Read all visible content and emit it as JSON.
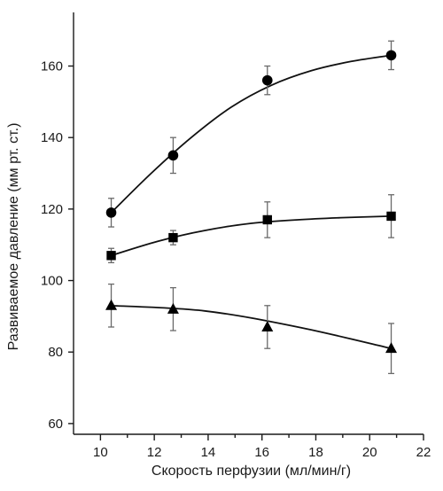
{
  "chart_data": {
    "type": "line",
    "xlabel": "Скорость перфузии (мл/мин/г)",
    "ylabel": "Развиваемое давление (мм рт. ст.)",
    "xlim": [
      9,
      22
    ],
    "ylim": [
      57,
      175
    ],
    "x_ticks": [
      10,
      12,
      14,
      16,
      18,
      20,
      22
    ],
    "y_ticks": [
      60,
      80,
      100,
      120,
      140,
      160
    ],
    "grid": false,
    "legend": "none",
    "series": [
      {
        "marker": "circle",
        "x": [
          10.4,
          12.7,
          16.2,
          20.8
        ],
        "y": [
          119,
          135,
          156,
          163
        ],
        "err": [
          4,
          5,
          4,
          4
        ],
        "curve_y": [
          119,
          130,
          140,
          148.5,
          154.6,
          158.7,
          161.3,
          163
        ]
      },
      {
        "marker": "square",
        "x": [
          10.4,
          12.7,
          16.2,
          20.8
        ],
        "y": [
          107,
          112,
          117,
          118
        ],
        "err": [
          2,
          2,
          5,
          6
        ],
        "curve_y": [
          107,
          111,
          114,
          116,
          117,
          117.6,
          118
        ]
      },
      {
        "marker": "triangle",
        "x": [
          10.4,
          12.7,
          16.2,
          20.8
        ],
        "y": [
          93,
          92,
          87,
          81
        ],
        "err": [
          6,
          6,
          6,
          7
        ],
        "curve_y": [
          93,
          91.5,
          87,
          81
        ]
      }
    ],
    "colors": {
      "axis": "#1a1a1a",
      "line": "#111111",
      "marker": "#000000",
      "errorbar": "#6a6a6a"
    }
  }
}
